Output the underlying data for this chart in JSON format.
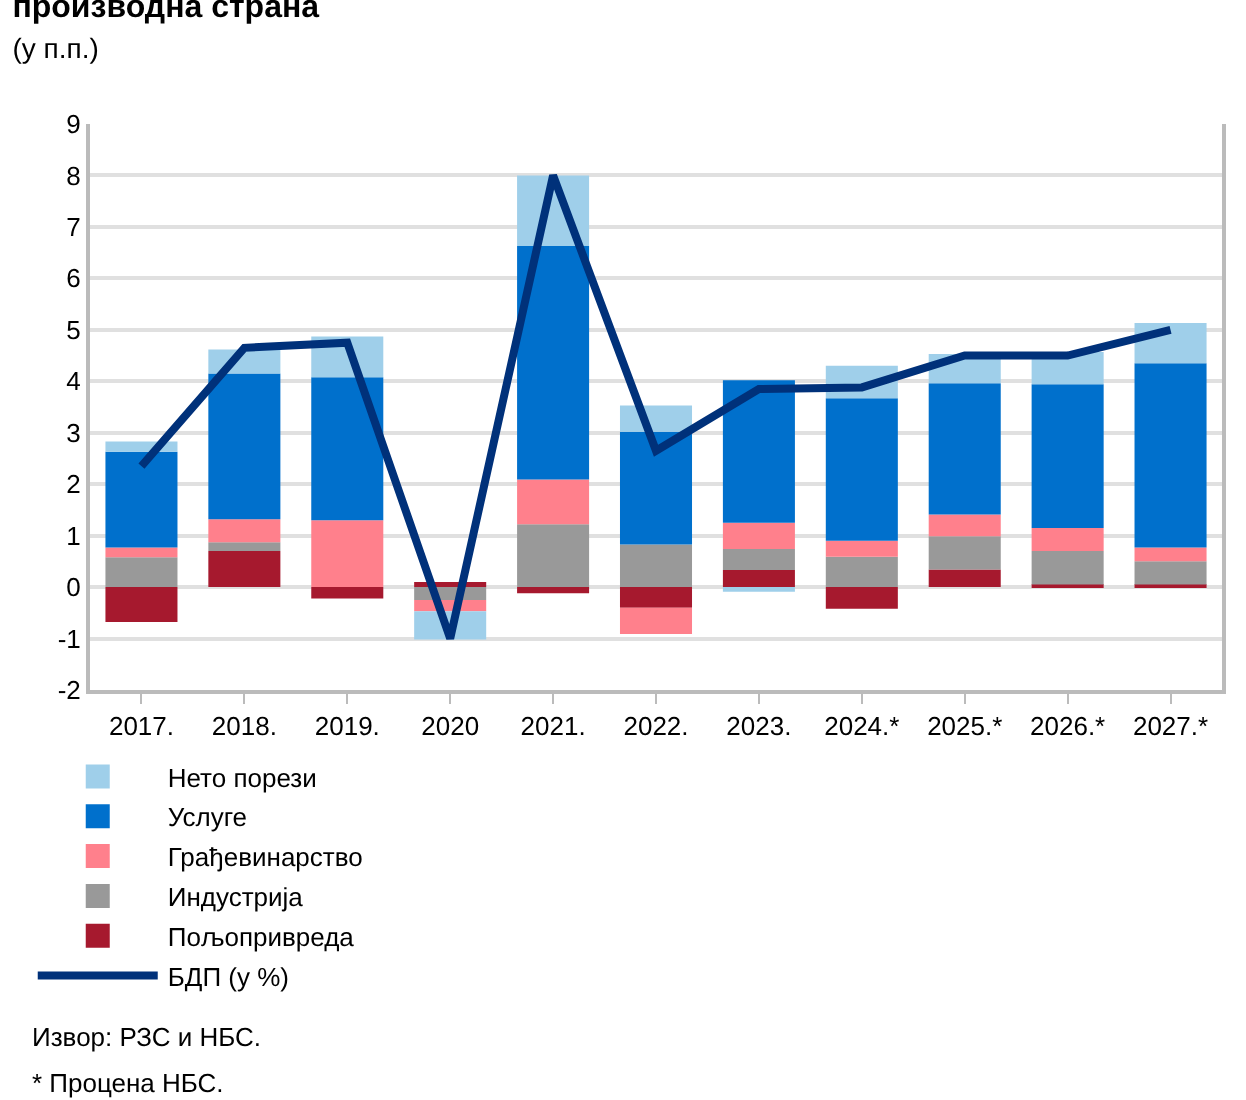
{
  "chart_data": {
    "type": "bar",
    "stacked": true,
    "title": "производна страна",
    "subtitle": "(у п.п.)",
    "categories": [
      "2017.",
      "2018.",
      "2019.",
      "2020",
      "2021.",
      "2022.",
      "2023.",
      "2024.*",
      "2025.*",
      "2026.*",
      "2027.*"
    ],
    "series": [
      {
        "name": "Пољопривреда",
        "color": "#a6192e",
        "values": [
          -0.68,
          0.7,
          -0.22,
          0.1,
          -0.12,
          -0.4,
          0.33,
          -0.42,
          0.34,
          0.05,
          0.05
        ]
      },
      {
        "name": "Индустрија",
        "color": "#999999",
        "values": [
          0.58,
          0.17,
          null,
          -0.25,
          1.22,
          0.83,
          0.41,
          0.59,
          0.65,
          0.65,
          0.45
        ]
      },
      {
        "name": "Грађевинарство",
        "color": "#ff808c",
        "values": [
          0.19,
          0.45,
          1.3,
          -0.22,
          0.87,
          -0.51,
          0.51,
          0.31,
          0.42,
          0.45,
          0.27
        ]
      },
      {
        "name": "Услуге",
        "color": "#0070cc",
        "values": [
          1.86,
          2.83,
          2.78,
          null,
          4.54,
          2.19,
          2.77,
          2.77,
          2.55,
          2.79,
          3.58
        ]
      },
      {
        "name": "Нето порези",
        "color": "#9fcfea",
        "values": [
          0.2,
          0.47,
          0.79,
          -0.55,
          1.37,
          0.51,
          -0.09,
          0.63,
          0.57,
          0.63,
          0.78
        ]
      },
      {
        "name": "БДП (у %)",
        "type": "line",
        "color": "#00317a",
        "values": [
          2.35,
          4.65,
          4.75,
          -1.0,
          8.0,
          2.65,
          3.85,
          3.88,
          4.5,
          4.5,
          5.0
        ]
      }
    ],
    "ylim": [
      -2,
      9
    ],
    "yticks": [
      -2,
      -1,
      0,
      1,
      2,
      3,
      4,
      5,
      6,
      7,
      8,
      9
    ],
    "grid": "y",
    "legend": "bottom left",
    "marker": "none",
    "annotations": [
      "Извор: РЗС и НБС.",
      "* Процена НБС."
    ]
  }
}
